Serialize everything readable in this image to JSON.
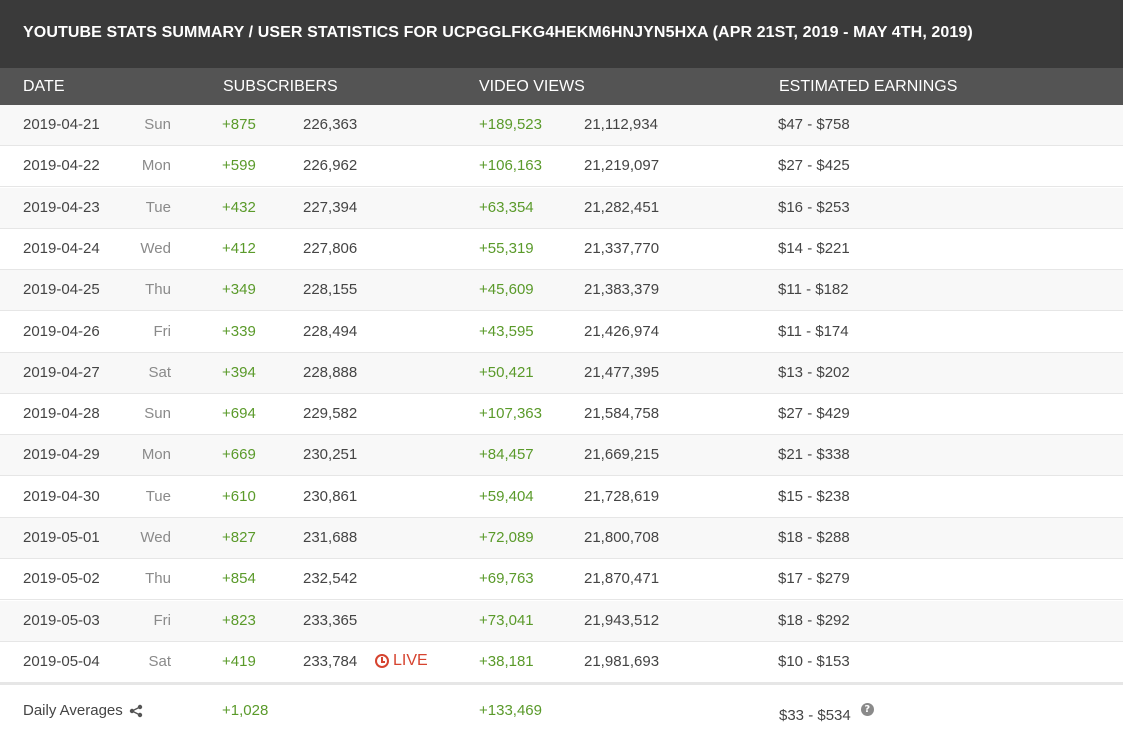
{
  "title": "YOUTUBE STATS SUMMARY / USER STATISTICS FOR UCPGGLFKG4HEKM6HNJYN5HXA (APR 21ST, 2019 - MAY 4TH, 2019)",
  "columns": {
    "date": "DATE",
    "subscribers": "SUBSCRIBERS",
    "video_views": "VIDEO VIEWS",
    "earnings": "ESTIMATED EARNINGS"
  },
  "live_label": "LIVE",
  "rows": [
    {
      "date": "2019-04-21",
      "day": "Sun",
      "sub_delta": "+875",
      "sub_total": "226,363",
      "view_delta": "+189,523",
      "view_total": "21,112,934",
      "earnings": "$47  -  $758"
    },
    {
      "date": "2019-04-22",
      "day": "Mon",
      "sub_delta": "+599",
      "sub_total": "226,962",
      "view_delta": "+106,163",
      "view_total": "21,219,097",
      "earnings": "$27  -  $425"
    },
    {
      "date": "2019-04-23",
      "day": "Tue",
      "sub_delta": "+432",
      "sub_total": "227,394",
      "view_delta": "+63,354",
      "view_total": "21,282,451",
      "earnings": "$16  -  $253"
    },
    {
      "date": "2019-04-24",
      "day": "Wed",
      "sub_delta": "+412",
      "sub_total": "227,806",
      "view_delta": "+55,319",
      "view_total": "21,337,770",
      "earnings": "$14  -  $221"
    },
    {
      "date": "2019-04-25",
      "day": "Thu",
      "sub_delta": "+349",
      "sub_total": "228,155",
      "view_delta": "+45,609",
      "view_total": "21,383,379",
      "earnings": "$11  -  $182"
    },
    {
      "date": "2019-04-26",
      "day": "Fri",
      "sub_delta": "+339",
      "sub_total": "228,494",
      "view_delta": "+43,595",
      "view_total": "21,426,974",
      "earnings": "$11  -  $174"
    },
    {
      "date": "2019-04-27",
      "day": "Sat",
      "sub_delta": "+394",
      "sub_total": "228,888",
      "view_delta": "+50,421",
      "view_total": "21,477,395",
      "earnings": "$13  -  $202"
    },
    {
      "date": "2019-04-28",
      "day": "Sun",
      "sub_delta": "+694",
      "sub_total": "229,582",
      "view_delta": "+107,363",
      "view_total": "21,584,758",
      "earnings": "$27  -  $429"
    },
    {
      "date": "2019-04-29",
      "day": "Mon",
      "sub_delta": "+669",
      "sub_total": "230,251",
      "view_delta": "+84,457",
      "view_total": "21,669,215",
      "earnings": "$21  -  $338"
    },
    {
      "date": "2019-04-30",
      "day": "Tue",
      "sub_delta": "+610",
      "sub_total": "230,861",
      "view_delta": "+59,404",
      "view_total": "21,728,619",
      "earnings": "$15  -  $238"
    },
    {
      "date": "2019-05-01",
      "day": "Wed",
      "sub_delta": "+827",
      "sub_total": "231,688",
      "view_delta": "+72,089",
      "view_total": "21,800,708",
      "earnings": "$18  -  $288"
    },
    {
      "date": "2019-05-02",
      "day": "Thu",
      "sub_delta": "+854",
      "sub_total": "232,542",
      "view_delta": "+69,763",
      "view_total": "21,870,471",
      "earnings": "$17  -  $279"
    },
    {
      "date": "2019-05-03",
      "day": "Fri",
      "sub_delta": "+823",
      "sub_total": "233,365",
      "view_delta": "+73,041",
      "view_total": "21,943,512",
      "earnings": "$18  -  $292"
    },
    {
      "date": "2019-05-04",
      "day": "Sat",
      "sub_delta": "+419",
      "sub_total": "233,784",
      "view_delta": "+38,181",
      "view_total": "21,981,693",
      "earnings": "$10  -  $153",
      "live": true
    }
  ],
  "totals": {
    "label": "Daily Averages",
    "sub_delta": "+1,028",
    "view_delta": "+133,469",
    "earnings": "$33  -  $534"
  },
  "icons": {
    "live": "clock-icon",
    "share": "share-icon",
    "help": "question-circle-icon"
  },
  "colors": {
    "title_bg": "#3a3a3a",
    "header_bg": "#545454",
    "positive": "#5a9a2a",
    "live": "#d6432f",
    "stripe": "#f8f8f8"
  }
}
